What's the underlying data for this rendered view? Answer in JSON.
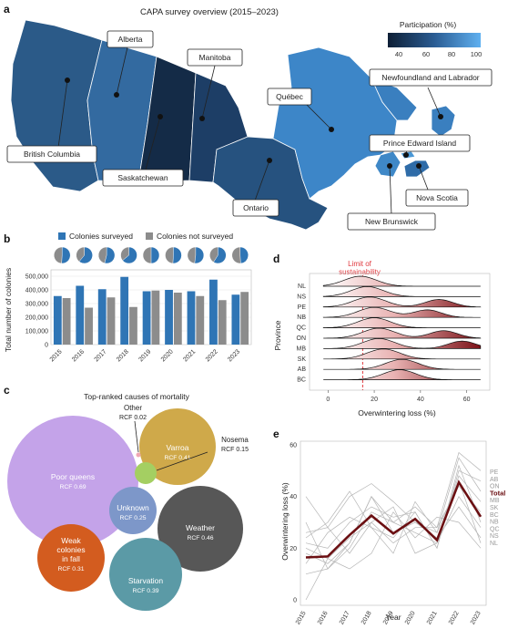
{
  "panel_labels": {
    "a": "a",
    "b": "b",
    "c": "c",
    "d": "d",
    "e": "e"
  },
  "colors": {
    "ocean": "#ffffff",
    "prov_default": "#2c5d8f",
    "bar_surveyed": "#2f75b5",
    "bar_not": "#8c8c8c",
    "limit": "#e0393e",
    "total_line": "#6b0f12"
  },
  "panel_a": {
    "title": "CAPA survey overview (2015–2023)",
    "legend_title": "Participation (%)",
    "legend_ticks": [
      "40",
      "60",
      "80",
      "100"
    ],
    "provinces": [
      {
        "name": "British Columbia",
        "color": "#2b5a88"
      },
      {
        "name": "Alberta",
        "color": "#336aa0"
      },
      {
        "name": "Saskatchewan",
        "color": "#142b47"
      },
      {
        "name": "Manitoba",
        "color": "#1d3e66"
      },
      {
        "name": "Ontario",
        "color": "#26527f"
      },
      {
        "name": "Québec",
        "color": "#3d86c8"
      },
      {
        "name": "Newfoundland and Labrador",
        "color": "#3a7fbf"
      },
      {
        "name": "Prince Edward Island",
        "color": "#4a98d6"
      },
      {
        "name": "New Brunswick",
        "color": "#3f88c7"
      },
      {
        "name": "Nova Scotia",
        "color": "#2f6ca8"
      }
    ]
  },
  "panel_b": {
    "legend": [
      "Colonies surveyed",
      "Colonies not surveyed"
    ],
    "ylabel": "Total number of colonies",
    "yticks": [
      "0",
      "100,000",
      "200,000",
      "300,000",
      "400,000",
      "500,000"
    ],
    "chart_data": {
      "type": "bar",
      "categories": [
        "2015",
        "2016",
        "2017",
        "2018",
        "2019",
        "2020",
        "2021",
        "2022",
        "2023"
      ],
      "series": [
        {
          "name": "Colonies surveyed",
          "values": [
            355000,
            430000,
            405000,
            495000,
            390000,
            400000,
            390000,
            475000,
            365000
          ]
        },
        {
          "name": "Colonies not surveyed",
          "values": [
            340000,
            270000,
            345000,
            275000,
            395000,
            380000,
            355000,
            325000,
            385000
          ]
        }
      ],
      "ylim": [
        0,
        520000
      ]
    },
    "pie_fractions": [
      0.51,
      0.61,
      0.54,
      0.64,
      0.5,
      0.51,
      0.52,
      0.59,
      0.49
    ]
  },
  "panel_c": {
    "title": "Top-ranked causes of mortality",
    "bubbles": [
      {
        "name": "Poor queens",
        "rcf": "RCF 0.69",
        "color": "#c4a3e9"
      },
      {
        "name": "Varroa",
        "rcf": "RCF 0.41",
        "color": "#cfa94a"
      },
      {
        "name": "Weather",
        "rcf": "RCF 0.46",
        "color": "#575757"
      },
      {
        "name": "Starvation",
        "rcf": "RCF 0.39",
        "color": "#5b9aa6"
      },
      {
        "name": "Unknown",
        "rcf": "RCF 0.25",
        "color": "#7d97c9"
      },
      {
        "name": "Weak colonies in fall",
        "rcf": "RCF 0.31",
        "color": "#d35c1f",
        "lines": [
          "Weak",
          "colonies",
          "in fall"
        ]
      },
      {
        "name": "Nosema",
        "rcf": "RCF 0.15",
        "color": "#a4cf62"
      },
      {
        "name": "Other",
        "rcf": "RCF 0.02",
        "color": "#f0a7b4"
      }
    ]
  },
  "panel_d": {
    "ylabel": "Province",
    "xlabel": "Overwintering loss (%)",
    "xticks": [
      "0",
      "20",
      "40",
      "60"
    ],
    "limit_label": [
      "Limit of",
      "sustainability"
    ],
    "chart_data": {
      "type": "area",
      "categories": [
        "NL",
        "NS",
        "PE",
        "NB",
        "QC",
        "ON",
        "MB",
        "SK",
        "AB",
        "BC"
      ],
      "modes": [
        [
          14
        ],
        [
          17
        ],
        [
          18,
          48
        ],
        [
          20,
          43
        ],
        [
          20
        ],
        [
          22,
          50
        ],
        [
          22,
          58
        ],
        [
          24
        ],
        [
          32
        ],
        [
          31
        ]
      ],
      "limit": 15,
      "xlim": [
        -8,
        70
      ]
    }
  },
  "panel_e": {
    "ylabel": "Overwintering loss (%)",
    "xlabel": "Year",
    "yticks": [
      "0",
      "20",
      "40",
      "60"
    ],
    "xticks": [
      "2015",
      "2016",
      "2017",
      "2018",
      "2019",
      "2020",
      "2021",
      "2022",
      "2023"
    ],
    "right_labels": [
      "PE",
      "AB",
      "ON",
      "Total",
      "MB",
      "SK",
      "BC",
      "NB",
      "QC",
      "NS",
      "NL"
    ],
    "chart_data": {
      "type": "line",
      "x": [
        "2015",
        "2016",
        "2017",
        "2018",
        "2019",
        "2020",
        "2021",
        "2022",
        "2023"
      ],
      "ylim": [
        0,
        60
      ],
      "series": [
        {
          "name": "Total",
          "values": [
            16.4,
            16.8,
            25.1,
            32.6,
            25.7,
            31.3,
            23.1,
            45.5,
            32.2
          ]
        },
        {
          "name": "PE",
          "values": [
            30,
            12,
            22,
            40,
            30,
            36,
            28,
            57,
            50
          ]
        },
        {
          "name": "AB",
          "values": [
            14,
            26,
            32,
            28,
            24,
            34,
            20,
            50,
            46
          ]
        },
        {
          "name": "ON",
          "values": [
            40,
            28,
            40,
            45,
            38,
            30,
            26,
            55,
            42
          ]
        },
        {
          "name": "MB",
          "values": [
            10,
            12,
            20,
            34,
            30,
            26,
            22,
            48,
            38
          ]
        },
        {
          "name": "SK",
          "values": [
            20,
            16,
            24,
            30,
            22,
            28,
            28,
            44,
            34
          ]
        },
        {
          "name": "BC",
          "values": [
            22,
            20,
            30,
            36,
            32,
            34,
            20,
            52,
            30
          ]
        },
        {
          "name": "NB",
          "values": [
            26,
            28,
            18,
            30,
            36,
            18,
            22,
            40,
            28
          ]
        },
        {
          "name": "QC",
          "values": [
            18,
            14,
            22,
            40,
            26,
            30,
            24,
            36,
            24
          ]
        },
        {
          "name": "NS",
          "values": [
            24,
            30,
            42,
            28,
            18,
            38,
            26,
            46,
            22
          ]
        },
        {
          "name": "NL",
          "values": [
            0,
            16,
            12,
            18,
            34,
            24,
            32,
            30,
            20
          ]
        }
      ]
    }
  }
}
